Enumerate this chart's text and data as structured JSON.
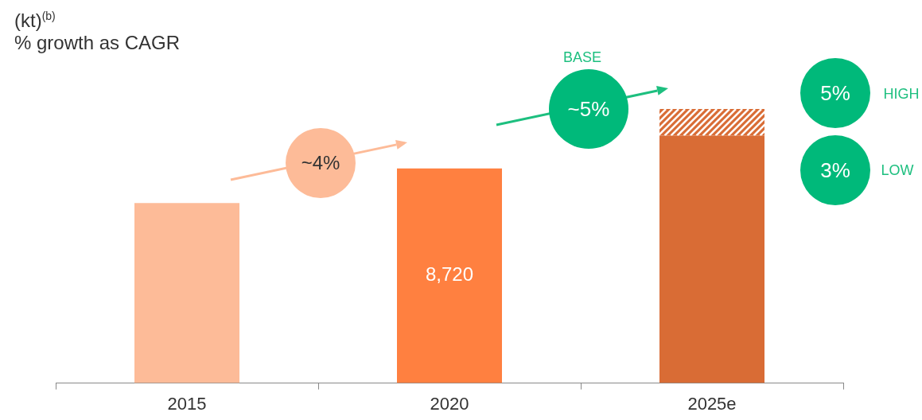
{
  "chart_data": {
    "type": "bar",
    "title": "(kt)$^{(b)}$",
    "subtitle": "% growth as CAGR",
    "categories": [
      "2015",
      "2020",
      "2025e"
    ],
    "tick_labels": "x",
    "stacked": true,
    "grid": false,
    "legend": false,
    "series": [
      {
        "colors": [
          "#fdbb98",
          "#ff8040",
          "#d96c35"
        ],
        "values": [
          7320,
          8720,
          10060
        ],
        "value_labels": [
          null,
          "8,720",
          null
        ]
      },
      {
        "color": "#d96c35",
        "values": [
          null,
          null,
          1080
        ]
      }
    ],
    "annotations": [
      "~4%",
      "BASE",
      "~5%",
      "5%",
      "HIGH",
      "3%",
      "LOW"
    ]
  }
}
